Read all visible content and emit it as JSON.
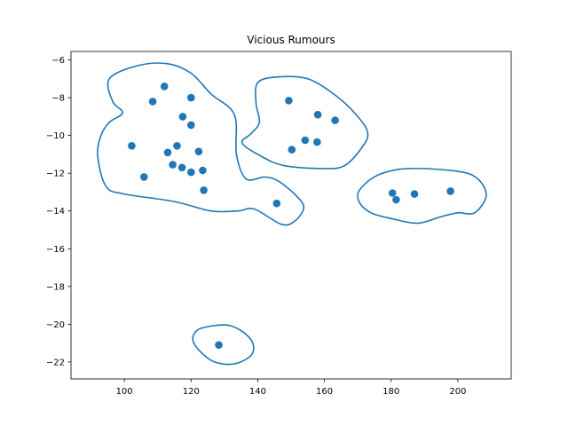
{
  "chart_data": {
    "type": "scatter",
    "title": "Vicious Rumours",
    "xlabel": "",
    "ylabel": "",
    "xlim": [
      84,
      216
    ],
    "ylim": [
      -22.9,
      -5.55
    ],
    "grid": false,
    "legend": "none",
    "x_ticks": [
      100,
      120,
      140,
      160,
      180,
      200
    ],
    "x_tick_labels": [
      "100",
      "120",
      "140",
      "160",
      "180",
      "200"
    ],
    "y_ticks": [
      -6,
      -8,
      -10,
      -12,
      -14,
      -16,
      -18,
      -20,
      -22
    ],
    "y_tick_labels": [
      "−6",
      "−8",
      "−10",
      "−12",
      "−14",
      "−16",
      "−18",
      "−20",
      "−22"
    ],
    "colors": {
      "points": "#1f77b4",
      "hulls": "#1f77b4"
    },
    "points": [
      {
        "x": 112,
        "y": -7.4
      },
      {
        "x": 108.5,
        "y": -8.2
      },
      {
        "x": 120,
        "y": -8.0
      },
      {
        "x": 117.5,
        "y": -9.0
      },
      {
        "x": 120,
        "y": -9.45
      },
      {
        "x": 102.2,
        "y": -10.55
      },
      {
        "x": 115.8,
        "y": -10.55
      },
      {
        "x": 113,
        "y": -10.9
      },
      {
        "x": 122.3,
        "y": -10.85
      },
      {
        "x": 114.5,
        "y": -11.55
      },
      {
        "x": 117.3,
        "y": -11.7
      },
      {
        "x": 120,
        "y": -11.95
      },
      {
        "x": 123.5,
        "y": -11.85
      },
      {
        "x": 105.9,
        "y": -12.2
      },
      {
        "x": 123.8,
        "y": -12.9
      },
      {
        "x": 145.7,
        "y": -13.6
      },
      {
        "x": 149.3,
        "y": -8.15
      },
      {
        "x": 158,
        "y": -8.9
      },
      {
        "x": 163.2,
        "y": -9.2
      },
      {
        "x": 154.2,
        "y": -10.25
      },
      {
        "x": 157.8,
        "y": -10.35
      },
      {
        "x": 150.2,
        "y": -10.75
      },
      {
        "x": 180.4,
        "y": -13.05
      },
      {
        "x": 181.5,
        "y": -13.4
      },
      {
        "x": 187,
        "y": -13.1
      },
      {
        "x": 197.8,
        "y": -12.95
      },
      {
        "x": 128.3,
        "y": -21.1
      }
    ],
    "clusters": [
      {
        "outline": [
          [
            95.5,
            -7.0
          ],
          [
            104,
            -6.3
          ],
          [
            113,
            -6.2
          ],
          [
            120,
            -6.7
          ],
          [
            126,
            -7.8
          ],
          [
            133,
            -8.9
          ],
          [
            133.6,
            -11.0
          ],
          [
            136.5,
            -12.3
          ],
          [
            142,
            -12.2
          ],
          [
            146,
            -12.4
          ],
          [
            151,
            -13.1
          ],
          [
            153.8,
            -13.8
          ],
          [
            151,
            -14.55
          ],
          [
            147,
            -14.7
          ],
          [
            139,
            -13.9
          ],
          [
            134,
            -14.0
          ],
          [
            126,
            -14.0
          ],
          [
            115,
            -13.5
          ],
          [
            100,
            -13.1
          ],
          [
            94.5,
            -12.7
          ],
          [
            92,
            -11.1
          ],
          [
            93,
            -10.0
          ],
          [
            95.5,
            -9.3
          ],
          [
            99.5,
            -8.8
          ],
          [
            96.5,
            -8.2
          ]
        ]
      },
      {
        "outline": [
          [
            135.3,
            -10.4
          ],
          [
            138,
            -9.9
          ],
          [
            140.5,
            -9.3
          ],
          [
            139.5,
            -8.3
          ],
          [
            140,
            -7.2
          ],
          [
            146,
            -6.9
          ],
          [
            155,
            -7.0
          ],
          [
            163.5,
            -7.9
          ],
          [
            170,
            -9.0
          ],
          [
            173,
            -9.9
          ],
          [
            171,
            -10.7
          ],
          [
            166,
            -11.6
          ],
          [
            160,
            -11.75
          ],
          [
            148,
            -11.6
          ],
          [
            141,
            -11.1
          ]
        ]
      },
      {
        "outline": [
          [
            170.5,
            -12.9
          ],
          [
            176,
            -12.1
          ],
          [
            185,
            -11.75
          ],
          [
            200,
            -11.9
          ],
          [
            206,
            -12.3
          ],
          [
            208.5,
            -13.2
          ],
          [
            205,
            -14.1
          ],
          [
            200,
            -14.1
          ],
          [
            195,
            -14.3
          ],
          [
            188,
            -14.65
          ],
          [
            180,
            -14.4
          ],
          [
            174,
            -14.1
          ],
          [
            170.5,
            -13.55
          ]
        ]
      },
      {
        "outline": [
          [
            126,
            -20.1
          ],
          [
            131,
            -20.05
          ],
          [
            135.5,
            -20.4
          ],
          [
            138.5,
            -21.0
          ],
          [
            138,
            -21.65
          ],
          [
            133,
            -22.1
          ],
          [
            127,
            -22.0
          ],
          [
            122.5,
            -21.4
          ],
          [
            120.5,
            -20.8
          ],
          [
            122,
            -20.3
          ]
        ]
      }
    ]
  }
}
